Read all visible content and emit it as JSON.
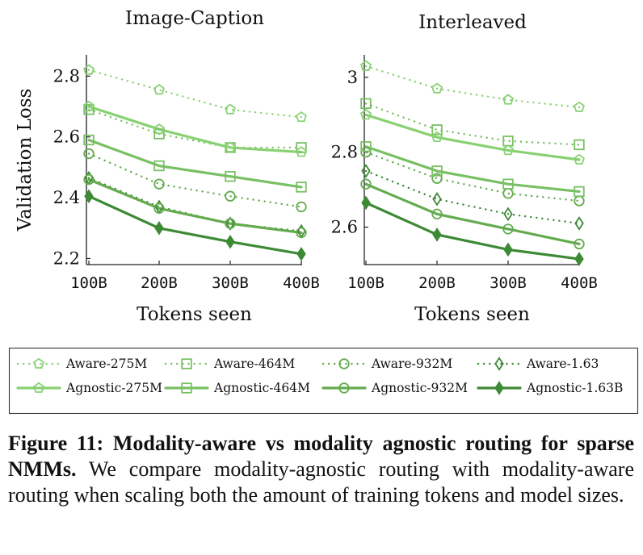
{
  "chart_data": [
    {
      "type": "line",
      "title": "Image-Caption",
      "xlabel": "Tokens seen",
      "ylabel": "Validation Loss",
      "categories": [
        "100B",
        "200B",
        "300B",
        "400B"
      ],
      "ylim": [
        2.18,
        2.87
      ],
      "yticks": [
        2.2,
        2.4,
        2.6,
        2.8
      ],
      "ytick_labels": [
        "2.2",
        "2.4",
        "2.6",
        "2.8"
      ],
      "series": [
        {
          "name": "Aware-275M",
          "values": [
            2.82,
            2.755,
            2.69,
            2.665
          ]
        },
        {
          "name": "Aware-464M",
          "values": [
            2.69,
            2.61,
            2.565,
            2.565
          ]
        },
        {
          "name": "Aware-932M",
          "values": [
            2.545,
            2.445,
            2.405,
            2.37
          ]
        },
        {
          "name": "Aware-1.63",
          "values": [
            2.465,
            2.37,
            2.315,
            2.29
          ]
        },
        {
          "name": "Agnostic-275M",
          "values": [
            2.7,
            2.625,
            2.565,
            2.55
          ]
        },
        {
          "name": "Agnostic-464M",
          "values": [
            2.59,
            2.505,
            2.47,
            2.435
          ]
        },
        {
          "name": "Agnostic-932M",
          "values": [
            2.46,
            2.365,
            2.315,
            2.285
          ]
        },
        {
          "name": "Agnostic-1.63B",
          "values": [
            2.405,
            2.3,
            2.255,
            2.215
          ]
        }
      ]
    },
    {
      "type": "line",
      "title": "Interleaved",
      "xlabel": "Tokens seen",
      "ylabel": "",
      "categories": [
        "100B",
        "200B",
        "300B",
        "400B"
      ],
      "ylim": [
        2.5,
        3.06
      ],
      "yticks": [
        2.6,
        2.8,
        3.0
      ],
      "ytick_labels": [
        "2.6",
        "2.8",
        "3"
      ],
      "series": [
        {
          "name": "Aware-275M",
          "values": [
            3.03,
            2.97,
            2.94,
            2.92
          ]
        },
        {
          "name": "Aware-464M",
          "values": [
            2.93,
            2.86,
            2.83,
            2.82
          ]
        },
        {
          "name": "Aware-932M",
          "values": [
            2.8,
            2.73,
            2.69,
            2.67
          ]
        },
        {
          "name": "Aware-1.63",
          "values": [
            2.75,
            2.675,
            2.635,
            2.61
          ]
        },
        {
          "name": "Agnostic-275M",
          "values": [
            2.9,
            2.84,
            2.805,
            2.78
          ]
        },
        {
          "name": "Agnostic-464M",
          "values": [
            2.815,
            2.75,
            2.715,
            2.695
          ]
        },
        {
          "name": "Agnostic-932M",
          "values": [
            2.715,
            2.635,
            2.595,
            2.555
          ]
        },
        {
          "name": "Agnostic-1.63B",
          "values": [
            2.665,
            2.58,
            2.54,
            2.515
          ]
        }
      ]
    }
  ],
  "legend": [
    {
      "label": "Aware-275M",
      "style": "dotted",
      "marker": "pentagon",
      "color": "#88d172"
    },
    {
      "label": "Aware-464M",
      "style": "dotted",
      "marker": "square",
      "color": "#78c063"
    },
    {
      "label": "Aware-932M",
      "style": "dotted",
      "marker": "circle",
      "color": "#64ab4f"
    },
    {
      "label": "Aware-1.63",
      "style": "dotted",
      "marker": "diamond",
      "color": "#3d8a35"
    },
    {
      "label": "Agnostic-275M",
      "style": "solid",
      "marker": "pentagon",
      "color": "#88d172"
    },
    {
      "label": "Agnostic-464M",
      "style": "solid",
      "marker": "square",
      "color": "#78c063"
    },
    {
      "label": "Agnostic-932M",
      "style": "solid",
      "marker": "circle",
      "color": "#64ab4f"
    },
    {
      "label": "Agnostic-1.63B",
      "style": "solid",
      "marker": "diamond",
      "color": "#3d8a35"
    }
  ],
  "caption": {
    "bold": "Figure 11: Modality-aware vs modality agnostic routing for sparse NMMs.",
    "text": "We compare modality-agnostic routing with modality-aware routing when scaling both the amount of training tokens and model sizes."
  }
}
